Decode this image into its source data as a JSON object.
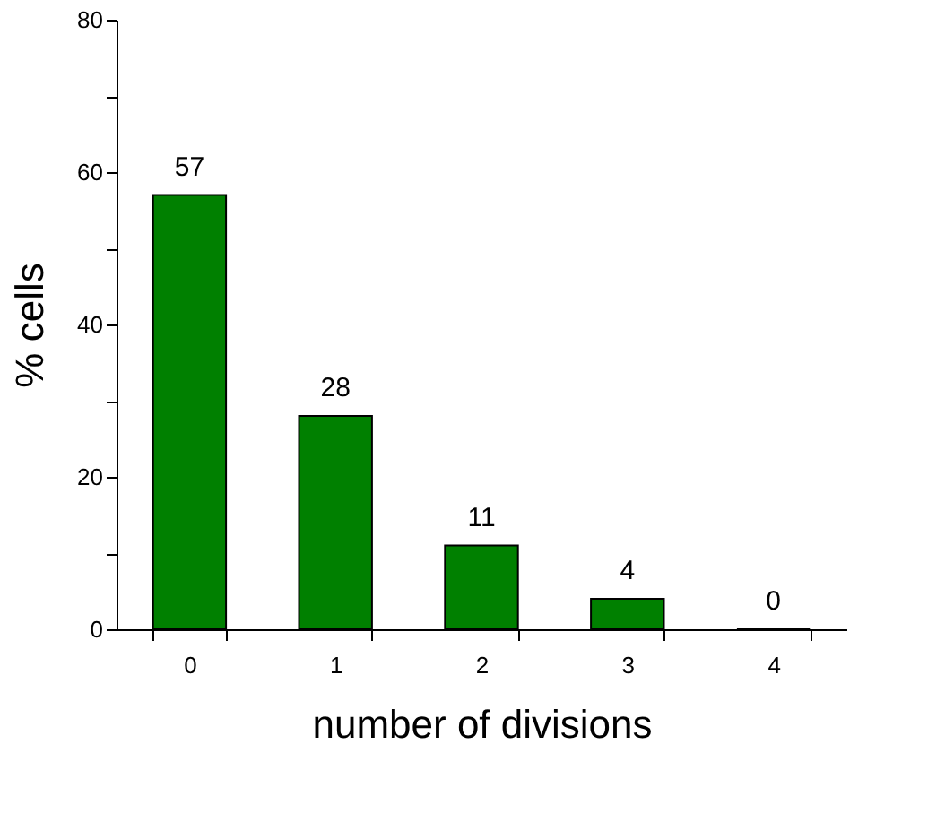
{
  "chart_data": {
    "type": "bar",
    "categories": [
      "0",
      "1",
      "2",
      "3",
      "4"
    ],
    "values": [
      57,
      28,
      11,
      4,
      0
    ],
    "color": "#008000",
    "xlabel": "number of divisions",
    "ylabel": "% cells",
    "ylim": [
      0,
      80
    ],
    "yticks": [
      0,
      {
        "value": 10,
        "label": null
      },
      20,
      {
        "value": 30,
        "label": null
      },
      40,
      {
        "value": 50,
        "label": null
      },
      60,
      {
        "value": 70,
        "label": null
      },
      80
    ],
    "data_labels": true,
    "grid": false
  }
}
